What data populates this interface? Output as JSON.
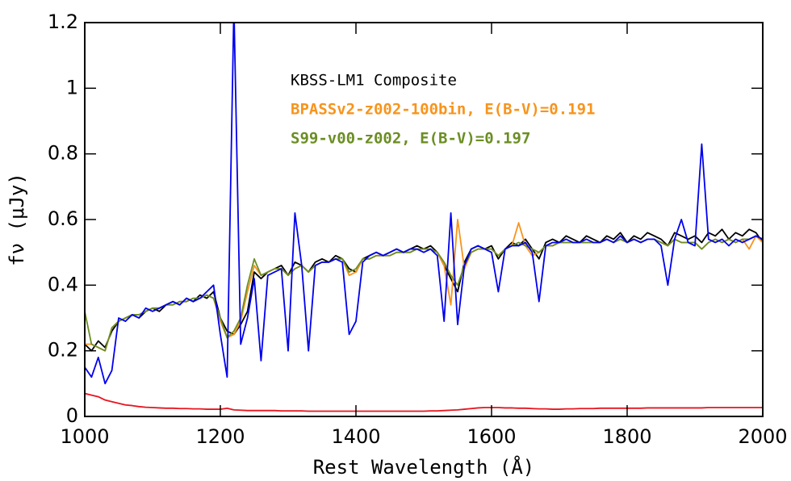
{
  "chart_data": {
    "type": "line",
    "xlabel": "Rest Wavelength (Å)",
    "ylabel": "fν (μJy)",
    "xlim": [
      1000,
      2000
    ],
    "xticks": [
      1000,
      1200,
      1400,
      1600,
      1800,
      2000
    ],
    "ylim": [
      0,
      1.2
    ],
    "yticks": [
      0,
      0.2,
      0.4,
      0.6,
      0.8,
      1,
      1.2
    ],
    "x": [
      1000,
      1010,
      1020,
      1030,
      1040,
      1050,
      1060,
      1070,
      1080,
      1090,
      1100,
      1110,
      1120,
      1130,
      1140,
      1150,
      1160,
      1170,
      1180,
      1190,
      1200,
      1210,
      1220,
      1230,
      1240,
      1250,
      1260,
      1270,
      1280,
      1290,
      1300,
      1310,
      1320,
      1330,
      1340,
      1350,
      1360,
      1370,
      1380,
      1390,
      1400,
      1410,
      1420,
      1430,
      1440,
      1450,
      1460,
      1470,
      1480,
      1490,
      1500,
      1510,
      1520,
      1530,
      1540,
      1550,
      1560,
      1570,
      1580,
      1590,
      1600,
      1610,
      1620,
      1630,
      1640,
      1650,
      1660,
      1670,
      1680,
      1690,
      1700,
      1710,
      1720,
      1730,
      1740,
      1750,
      1760,
      1770,
      1780,
      1790,
      1800,
      1810,
      1820,
      1830,
      1840,
      1850,
      1860,
      1870,
      1880,
      1890,
      1900,
      1910,
      1920,
      1930,
      1940,
      1950,
      1960,
      1970,
      1980,
      1990,
      2000
    ],
    "series": [
      {
        "name": "KBSS-LM1 Composite",
        "color": "#000000",
        "values": [
          0.22,
          0.2,
          0.23,
          0.21,
          0.26,
          0.29,
          0.3,
          0.31,
          0.3,
          0.32,
          0.33,
          0.32,
          0.34,
          0.35,
          0.34,
          0.36,
          0.35,
          0.37,
          0.36,
          0.38,
          0.3,
          0.26,
          0.25,
          0.28,
          0.32,
          0.44,
          0.42,
          0.44,
          0.45,
          0.46,
          0.43,
          0.47,
          0.46,
          0.44,
          0.47,
          0.48,
          0.47,
          0.49,
          0.48,
          0.45,
          0.44,
          0.48,
          0.49,
          0.5,
          0.49,
          0.5,
          0.51,
          0.5,
          0.51,
          0.52,
          0.51,
          0.52,
          0.5,
          0.46,
          0.42,
          0.38,
          0.47,
          0.51,
          0.52,
          0.51,
          0.52,
          0.48,
          0.51,
          0.53,
          0.52,
          0.54,
          0.51,
          0.48,
          0.53,
          0.54,
          0.53,
          0.55,
          0.54,
          0.53,
          0.55,
          0.54,
          0.53,
          0.55,
          0.54,
          0.56,
          0.53,
          0.55,
          0.54,
          0.56,
          0.55,
          0.54,
          0.52,
          0.56,
          0.55,
          0.54,
          0.55,
          0.53,
          0.56,
          0.55,
          0.57,
          0.54,
          0.56,
          0.55,
          0.57,
          0.56,
          0.53
        ]
      },
      {
        "name": "BPASSv2-z002-100bin, E(B-V)=0.191",
        "color": "#f7941d",
        "values": [
          0.22,
          0.22,
          0.21,
          0.2,
          0.27,
          0.29,
          0.3,
          0.31,
          0.31,
          0.32,
          0.33,
          0.33,
          0.34,
          0.34,
          0.35,
          0.35,
          0.36,
          0.36,
          0.37,
          0.36,
          0.29,
          0.24,
          0.25,
          0.29,
          0.38,
          0.46,
          0.43,
          0.44,
          0.45,
          0.45,
          0.43,
          0.45,
          0.46,
          0.44,
          0.46,
          0.47,
          0.47,
          0.48,
          0.48,
          0.43,
          0.44,
          0.48,
          0.48,
          0.49,
          0.49,
          0.49,
          0.5,
          0.5,
          0.5,
          0.51,
          0.51,
          0.51,
          0.5,
          0.46,
          0.34,
          0.6,
          0.45,
          0.5,
          0.51,
          0.51,
          0.51,
          0.49,
          0.51,
          0.52,
          0.59,
          0.52,
          0.49,
          0.5,
          0.52,
          0.52,
          0.53,
          0.53,
          0.53,
          0.53,
          0.53,
          0.53,
          0.53,
          0.54,
          0.53,
          0.54,
          0.53,
          0.54,
          0.53,
          0.54,
          0.54,
          0.53,
          0.52,
          0.54,
          0.53,
          0.53,
          0.53,
          0.51,
          0.53,
          0.54,
          0.53,
          0.54,
          0.53,
          0.54,
          0.51,
          0.55,
          0.53
        ]
      },
      {
        "name": "S99-v00-z002, E(B-V)=0.197",
        "color": "#6b8e23",
        "values": [
          0.32,
          0.22,
          0.21,
          0.2,
          0.27,
          0.29,
          0.3,
          0.31,
          0.31,
          0.32,
          0.33,
          0.33,
          0.34,
          0.34,
          0.35,
          0.35,
          0.36,
          0.36,
          0.37,
          0.36,
          0.3,
          0.24,
          0.26,
          0.3,
          0.4,
          0.48,
          0.43,
          0.44,
          0.45,
          0.45,
          0.43,
          0.45,
          0.46,
          0.44,
          0.46,
          0.47,
          0.47,
          0.48,
          0.48,
          0.44,
          0.45,
          0.48,
          0.48,
          0.49,
          0.49,
          0.49,
          0.5,
          0.5,
          0.5,
          0.51,
          0.51,
          0.51,
          0.5,
          0.47,
          0.43,
          0.4,
          0.46,
          0.5,
          0.51,
          0.51,
          0.51,
          0.49,
          0.51,
          0.52,
          0.53,
          0.52,
          0.51,
          0.5,
          0.52,
          0.52,
          0.53,
          0.53,
          0.53,
          0.53,
          0.53,
          0.53,
          0.53,
          0.54,
          0.53,
          0.54,
          0.53,
          0.54,
          0.53,
          0.54,
          0.54,
          0.53,
          0.52,
          0.54,
          0.53,
          0.53,
          0.53,
          0.51,
          0.53,
          0.54,
          0.53,
          0.54,
          0.53,
          0.54,
          0.54,
          0.55,
          0.54
        ]
      },
      {
        "color": "#0000ee",
        "values": [
          0.15,
          0.12,
          0.18,
          0.1,
          0.14,
          0.3,
          0.29,
          0.31,
          0.3,
          0.33,
          0.32,
          0.33,
          0.34,
          0.35,
          0.34,
          0.36,
          0.35,
          0.36,
          0.38,
          0.4,
          0.25,
          0.12,
          1.25,
          0.22,
          0.3,
          0.42,
          0.17,
          0.43,
          0.44,
          0.45,
          0.2,
          0.62,
          0.46,
          0.2,
          0.46,
          0.47,
          0.47,
          0.48,
          0.47,
          0.25,
          0.29,
          0.47,
          0.49,
          0.5,
          0.49,
          0.5,
          0.51,
          0.5,
          0.51,
          0.51,
          0.5,
          0.51,
          0.49,
          0.29,
          0.62,
          0.28,
          0.46,
          0.51,
          0.52,
          0.51,
          0.5,
          0.38,
          0.51,
          0.52,
          0.52,
          0.53,
          0.5,
          0.35,
          0.52,
          0.53,
          0.53,
          0.54,
          0.53,
          0.53,
          0.54,
          0.53,
          0.53,
          0.54,
          0.53,
          0.55,
          0.53,
          0.54,
          0.53,
          0.54,
          0.54,
          0.52,
          0.4,
          0.54,
          0.6,
          0.53,
          0.52,
          0.83,
          0.54,
          0.53,
          0.54,
          0.52,
          0.54,
          0.53,
          0.54,
          0.55,
          0.54
        ]
      },
      {
        "color": "#e8141e",
        "values": [
          0.07,
          0.065,
          0.06,
          0.05,
          0.045,
          0.04,
          0.035,
          0.033,
          0.03,
          0.028,
          0.027,
          0.026,
          0.025,
          0.025,
          0.024,
          0.024,
          0.023,
          0.023,
          0.022,
          0.022,
          0.022,
          0.025,
          0.02,
          0.019,
          0.018,
          0.018,
          0.018,
          0.018,
          0.018,
          0.017,
          0.017,
          0.017,
          0.017,
          0.016,
          0.016,
          0.016,
          0.016,
          0.016,
          0.016,
          0.016,
          0.016,
          0.016,
          0.016,
          0.016,
          0.016,
          0.016,
          0.016,
          0.016,
          0.016,
          0.016,
          0.016,
          0.017,
          0.017,
          0.018,
          0.019,
          0.02,
          0.022,
          0.024,
          0.026,
          0.027,
          0.027,
          0.027,
          0.026,
          0.026,
          0.025,
          0.025,
          0.024,
          0.023,
          0.023,
          0.022,
          0.022,
          0.023,
          0.023,
          0.024,
          0.024,
          0.024,
          0.025,
          0.025,
          0.025,
          0.025,
          0.025,
          0.025,
          0.025,
          0.026,
          0.026,
          0.026,
          0.026,
          0.026,
          0.026,
          0.026,
          0.026,
          0.026,
          0.027,
          0.027,
          0.027,
          0.027,
          0.027,
          0.027,
          0.027,
          0.027,
          0.027
        ]
      }
    ]
  }
}
